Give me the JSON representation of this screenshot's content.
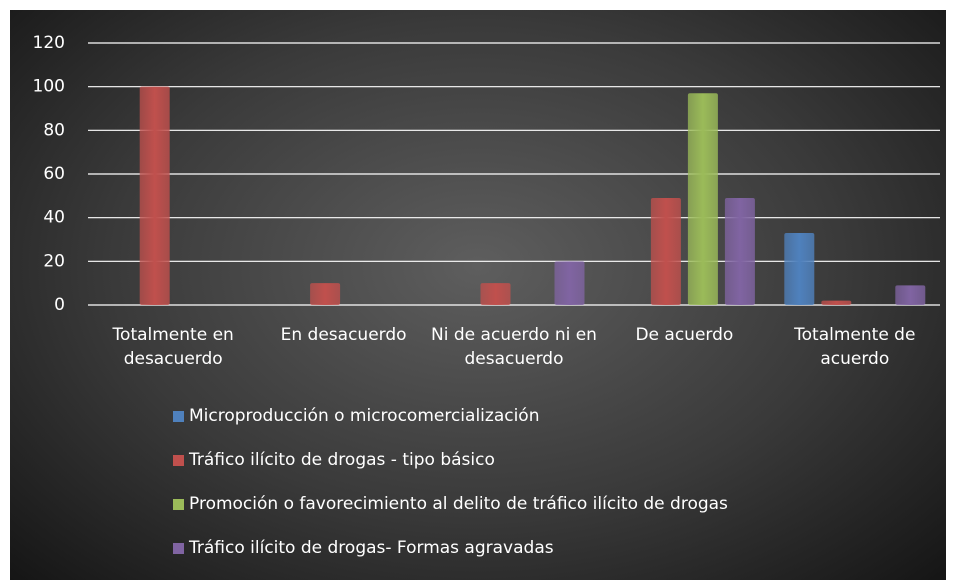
{
  "chart_data": {
    "type": "bar",
    "categories": [
      "Totalmente en desacuerdo",
      "En desacuerdo",
      "Ni de acuerdo ni en desacuerdo",
      "De acuerdo",
      "Totalmente de acuerdo"
    ],
    "series": [
      {
        "name": "Microproducción o microcomercialización",
        "color": "#4f81bd",
        "values": [
          0,
          0,
          0,
          0,
          33
        ]
      },
      {
        "name": "Tráfico ilícito de drogas - tipo básico",
        "color": "#c0504d",
        "values": [
          100,
          10,
          10,
          49,
          2
        ]
      },
      {
        "name": "Promoción o favorecimiento al delito de tráfico ilícito de drogas",
        "color": "#9bbb59",
        "values": [
          0,
          0,
          0,
          97,
          0
        ]
      },
      {
        "name": "Tráfico ilícito de drogas- Formas agravadas",
        "color": "#8064a2",
        "values": [
          0,
          0,
          20,
          49,
          9
        ]
      }
    ],
    "ylim": [
      0,
      120
    ],
    "yticks": [
      0,
      20,
      40,
      60,
      80,
      100,
      120
    ],
    "grid": true,
    "legend": "bottom"
  }
}
